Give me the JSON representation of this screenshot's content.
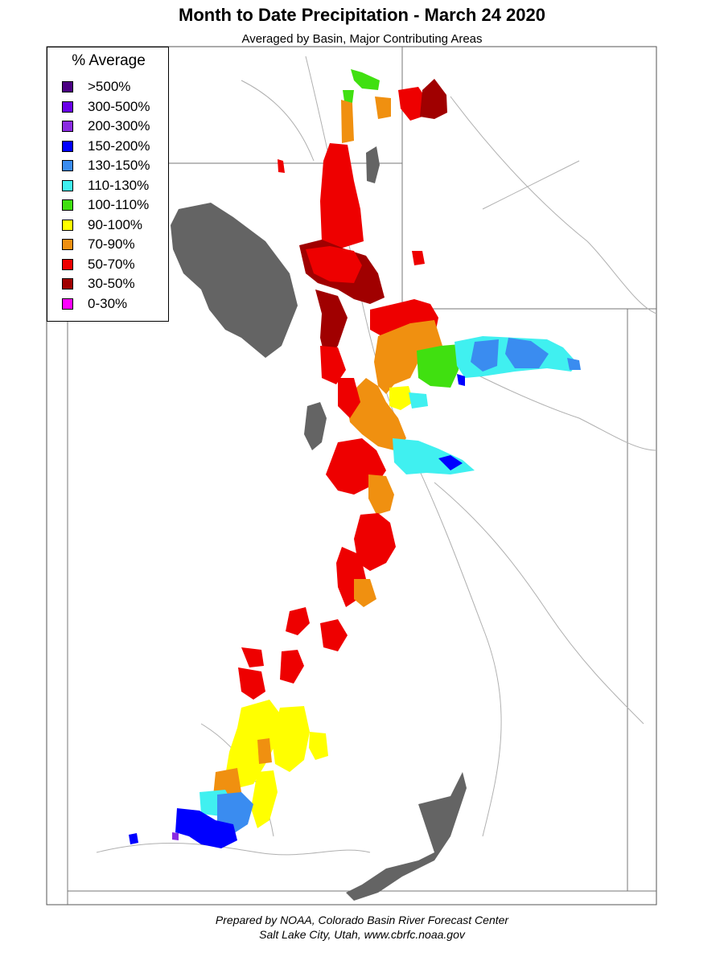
{
  "header": {
    "title": "Month to Date Precipitation - March 24 2020",
    "subtitle": "Averaged by Basin, Major Contributing Areas"
  },
  "legend": {
    "title": "% Average",
    "items": [
      {
        "label": ">500%",
        "color": "#4b0082"
      },
      {
        "label": "300-500%",
        "color": "#6a00e8"
      },
      {
        "label": "200-300%",
        "color": "#8a2be2"
      },
      {
        "label": "150-200%",
        "color": "#0000ff"
      },
      {
        "label": "130-150%",
        "color": "#3a8cf0"
      },
      {
        "label": "110-130%",
        "color": "#40f0f0"
      },
      {
        "label": "100-110%",
        "color": "#40e010"
      },
      {
        "label": "90-100%",
        "color": "#ffff00"
      },
      {
        "label": "70-90%",
        "color": "#f09010"
      },
      {
        "label": "50-70%",
        "color": "#ee0000"
      },
      {
        "label": "30-50%",
        "color": "#a00000"
      },
      {
        "label": "0-30%",
        "color": "#ff00ff"
      }
    ]
  },
  "map": {
    "lake_color": "#646464",
    "boundary_color": "#888888",
    "river_color": "#b0b0b0"
  },
  "footer": {
    "credit_line1": "Prepared by NOAA, Colorado Basin River Forecast Center",
    "credit_line2": "Salt Lake City, Utah, www.cbrfc.noaa.gov"
  }
}
